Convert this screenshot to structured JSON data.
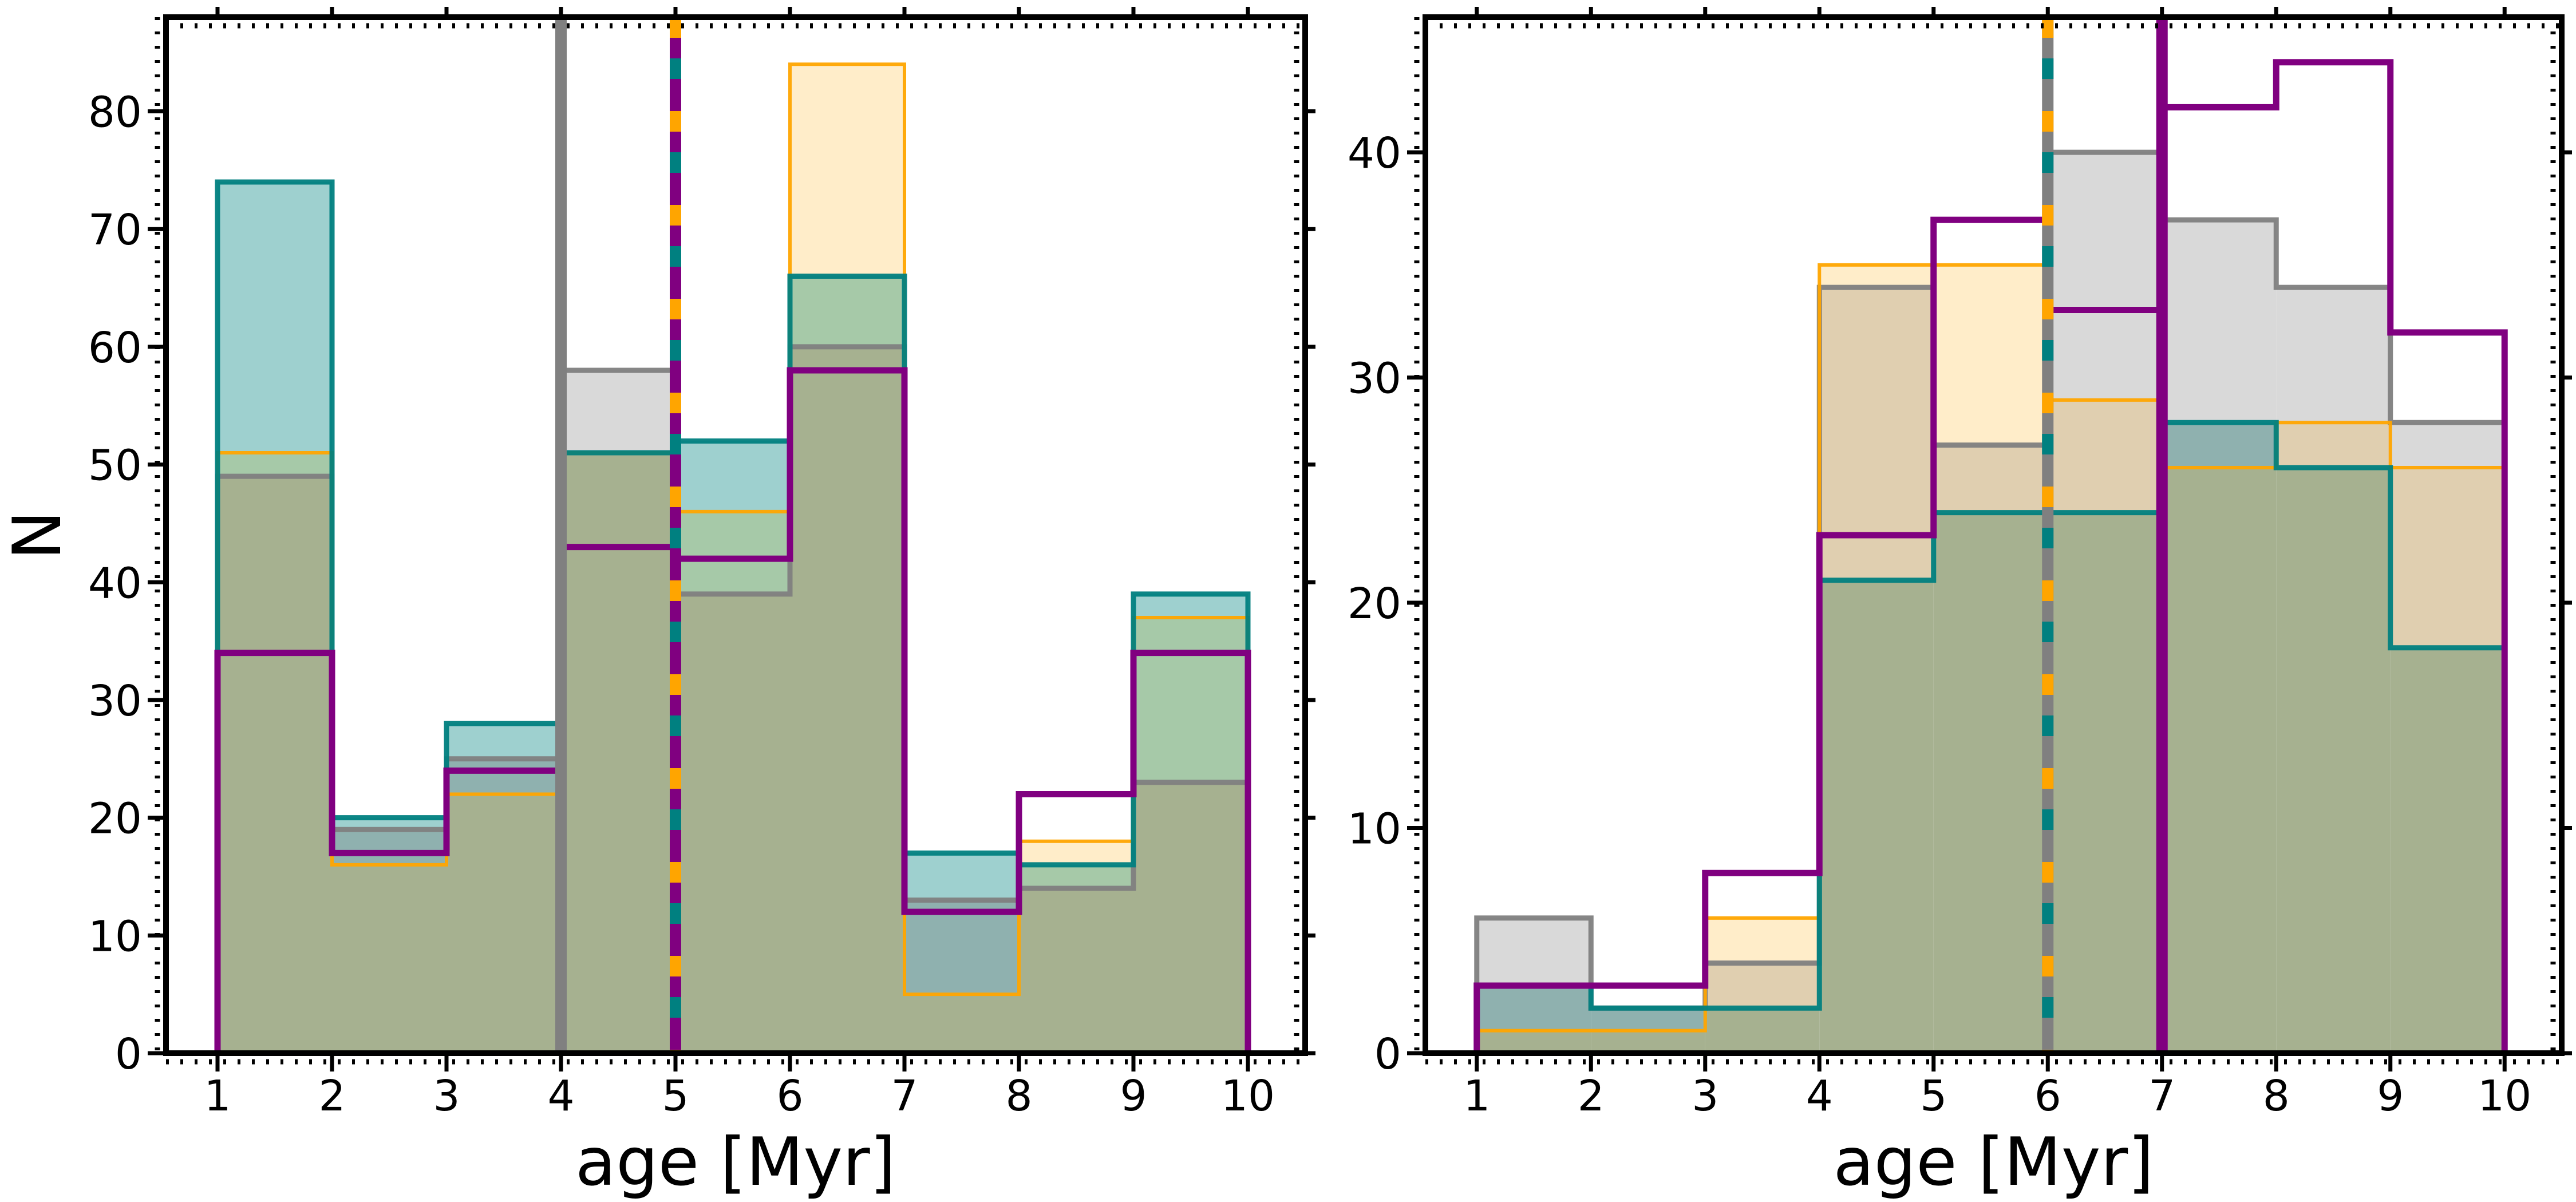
{
  "chart_data": [
    {
      "type": "histogram",
      "xlabel": "age [Myr]",
      "ylabel": "N",
      "xlim": [
        0.55,
        10.5
      ],
      "ylim": [
        0,
        88
      ],
      "xticks": [
        1,
        2,
        3,
        4,
        5,
        6,
        7,
        8,
        9,
        10
      ],
      "yticks": [
        0,
        10,
        20,
        30,
        40,
        50,
        60,
        70,
        80
      ],
      "bin_edges": [
        1,
        2,
        3,
        4,
        5,
        6,
        7,
        8,
        9,
        10
      ],
      "series": [
        {
          "color": "#808080",
          "values": [
            49,
            19,
            25,
            58,
            39,
            60,
            13,
            14,
            23
          ],
          "filled": true,
          "lw": 9
        },
        {
          "color": "#ffa500",
          "values": [
            51,
            16,
            22,
            51,
            46,
            84,
            5,
            18,
            37
          ],
          "filled": true,
          "lw": 6
        },
        {
          "color": "#008080",
          "values": [
            74,
            20,
            28,
            51,
            52,
            66,
            17,
            16,
            39
          ],
          "filled": true,
          "lw": 9
        },
        {
          "color": "#800080",
          "values": [
            34,
            17,
            24,
            43,
            42,
            58,
            12,
            22,
            34
          ],
          "filled": false,
          "lw": 11
        }
      ],
      "vlines": [
        {
          "x": 4,
          "color": "#808080",
          "style": "solid"
        },
        {
          "x": 5,
          "color": "#800080",
          "style": "solid"
        },
        {
          "x": 5,
          "color": "#ffa500",
          "style": "dashed"
        },
        {
          "x": 5,
          "color": "#008080",
          "style": "dashed-offset"
        }
      ]
    },
    {
      "type": "histogram",
      "xlabel": "age [Myr]",
      "ylabel": "",
      "xlim": [
        0.55,
        10.5
      ],
      "ylim": [
        0,
        46
      ],
      "xticks": [
        1,
        2,
        3,
        4,
        5,
        6,
        7,
        8,
        9,
        10
      ],
      "yticks": [
        0,
        10,
        20,
        30,
        40
      ],
      "bin_edges": [
        1,
        2,
        3,
        4,
        5,
        6,
        7,
        8,
        9,
        10
      ],
      "series": [
        {
          "color": "#808080",
          "values": [
            6,
            2,
            4,
            34,
            27,
            40,
            37,
            34,
            28
          ],
          "filled": true,
          "lw": 9
        },
        {
          "color": "#ffa500",
          "values": [
            1,
            1,
            6,
            35,
            35,
            29,
            26,
            28,
            26
          ],
          "filled": true,
          "lw": 6
        },
        {
          "color": "#008080",
          "values": [
            3,
            2,
            2,
            21,
            24,
            24,
            28,
            26,
            18
          ],
          "filled": true,
          "lw": 9
        },
        {
          "color": "#800080",
          "values": [
            3,
            3,
            8,
            23,
            37,
            33,
            42,
            44,
            32
          ],
          "filled": false,
          "lw": 11
        }
      ],
      "vlines": [
        {
          "x": 6,
          "color": "#808080",
          "style": "solid"
        },
        {
          "x": 6,
          "color": "#ffa500",
          "style": "dashed"
        },
        {
          "x": 6,
          "color": "#008080",
          "style": "dashed-offset"
        },
        {
          "x": 7,
          "color": "#800080",
          "style": "solid"
        }
      ]
    }
  ]
}
